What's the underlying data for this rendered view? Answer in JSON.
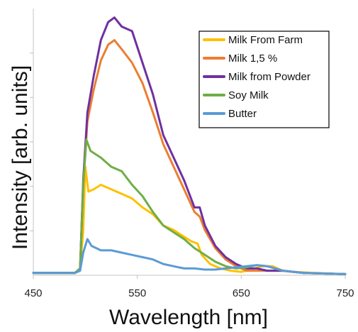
{
  "chart_data": {
    "type": "line",
    "xlabel": "Wavelength  [nm]",
    "ylabel": "Intensity [arb. units]",
    "xlim": [
      450,
      750
    ],
    "x_ticks": [
      450,
      550,
      650,
      750
    ],
    "x_tick_labels": [
      "450",
      "550",
      "650",
      "750"
    ],
    "y_ticks_shown": false,
    "grid": false,
    "legend_placement": "top-right",
    "series": [
      {
        "name": "Milk From Farm",
        "color": "#FFC000",
        "x": [
          450,
          490,
          495,
          498,
          500,
          503,
          508,
          515,
          525,
          535,
          545,
          555,
          565,
          575,
          585,
          595,
          602,
          608,
          612,
          620,
          630,
          640,
          650,
          660,
          670,
          680,
          690,
          700,
          720,
          750
        ],
        "y": [
          1,
          1,
          3,
          20,
          48,
          37,
          38,
          40,
          38,
          36,
          34,
          30,
          27,
          22,
          20,
          17,
          15,
          14,
          9,
          5,
          3,
          2,
          1.5,
          2.5,
          4,
          4,
          2,
          1.5,
          1,
          0.5
        ]
      },
      {
        "name": "Milk 1,5 %",
        "color": "#ED7D31",
        "x": [
          450,
          490,
          495,
          498,
          502,
          508,
          515,
          522,
          528,
          535,
          545,
          555,
          565,
          575,
          585,
          595,
          605,
          610,
          615,
          625,
          635,
          645,
          655,
          665,
          675,
          690,
          710,
          750
        ],
        "y": [
          1,
          1,
          3,
          40,
          68,
          82,
          95,
          102,
          104,
          100,
          94,
          85,
          72,
          58,
          48,
          38,
          28,
          26,
          20,
          12,
          7,
          4,
          2,
          2,
          2,
          2,
          1,
          0.5
        ]
      },
      {
        "name": "Milk from Powder",
        "color": "#7030A0",
        "x": [
          450,
          490,
          495,
          498,
          502,
          508,
          515,
          522,
          528,
          535,
          545,
          555,
          565,
          575,
          585,
          595,
          605,
          610,
          615,
          625,
          635,
          645,
          655,
          665,
          675,
          690,
          710,
          750
        ],
        "y": [
          1,
          1,
          3,
          42,
          72,
          88,
          104,
          112,
          114,
          110,
          108,
          94,
          80,
          62,
          52,
          42,
          30,
          30,
          22,
          13,
          8,
          5,
          3,
          3,
          2,
          2,
          1,
          0.5
        ]
      },
      {
        "name": "Soy Milk",
        "color": "#70AD47",
        "x": [
          450,
          490,
          495,
          498,
          501,
          505,
          515,
          525,
          535,
          545,
          555,
          565,
          575,
          585,
          595,
          605,
          615,
          625,
          635,
          645,
          655,
          665,
          675,
          690,
          710,
          750
        ],
        "y": [
          1,
          1,
          3,
          40,
          60,
          55,
          52,
          48,
          46,
          40,
          35,
          28,
          22,
          19,
          16,
          12,
          9,
          6,
          4,
          3,
          3.5,
          4.5,
          4,
          2,
          1,
          0.5
        ]
      },
      {
        "name": "Butter",
        "color": "#5B9BD5",
        "x": [
          450,
          490,
          495,
          498,
          502,
          506,
          515,
          525,
          535,
          545,
          555,
          565,
          575,
          585,
          595,
          605,
          615,
          625,
          635,
          645,
          655,
          665,
          675,
          690,
          710,
          750
        ],
        "y": [
          1,
          1,
          2,
          10,
          16,
          13,
          11,
          11,
          10,
          9,
          8,
          7,
          5,
          4,
          3,
          3,
          2.5,
          2.5,
          3,
          3.5,
          4,
          4.5,
          4,
          2,
          1,
          0.5
        ]
      }
    ]
  }
}
